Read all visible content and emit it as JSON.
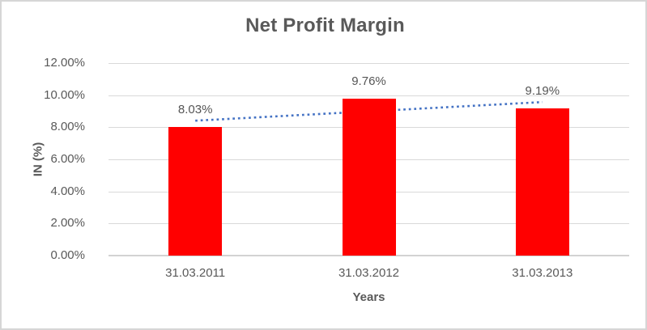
{
  "chart_data": {
    "type": "bar",
    "title": "Net Profit Margin",
    "xlabel": "Years",
    "ylabel": "IN (%)",
    "categories": [
      "31.03.2011",
      "31.03.2012",
      "31.03.2013"
    ],
    "values": [
      8.03,
      9.76,
      9.19
    ],
    "data_labels": [
      "8.03%",
      "9.76%",
      "9.19%"
    ],
    "ylim": [
      0,
      12
    ],
    "ytick_step": 2,
    "ytick_labels": [
      "0.00%",
      "2.00%",
      "4.00%",
      "6.00%",
      "8.00%",
      "10.00%",
      "12.00%"
    ],
    "grid": true,
    "legend": "none",
    "bar_color": "#ff0000",
    "trendline": {
      "kind": "linear",
      "style": "dotted",
      "color": "#4472c4",
      "start_pct": 8.41,
      "end_pct": 9.57
    },
    "colors": {
      "title_text": "#595959",
      "axis_text": "#595959",
      "gridline": "#d9d9d9",
      "frame_border": "#d6d6d6"
    }
  }
}
